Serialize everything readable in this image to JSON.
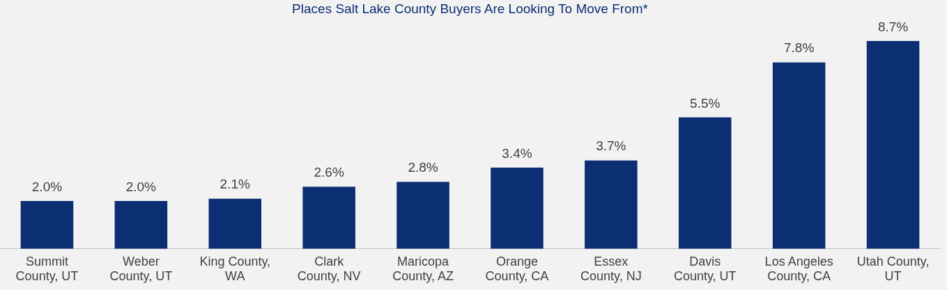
{
  "chart_data": {
    "type": "bar",
    "title": "Places Salt Lake County Buyers Are Looking To Move From*",
    "categories": [
      "Summit County, UT",
      "Weber County, UT",
      "King County, WA",
      "Clark County, NV",
      "Maricopa County, AZ",
      "Orange County, CA",
      "Essex County, NJ",
      "Davis County, UT",
      "Los Angeles County, CA",
      "Utah County, UT"
    ],
    "values": [
      2.0,
      2.0,
      2.1,
      2.6,
      2.8,
      3.4,
      3.7,
      5.5,
      7.8,
      8.7
    ],
    "value_labels": [
      "2.0%",
      "2.0%",
      "2.1%",
      "2.6%",
      "2.8%",
      "3.4%",
      "3.7%",
      "5.5%",
      "7.8%",
      "8.7%"
    ],
    "color": "#0c2e72",
    "tick_labels": "x",
    "grid": false,
    "legend": false
  }
}
